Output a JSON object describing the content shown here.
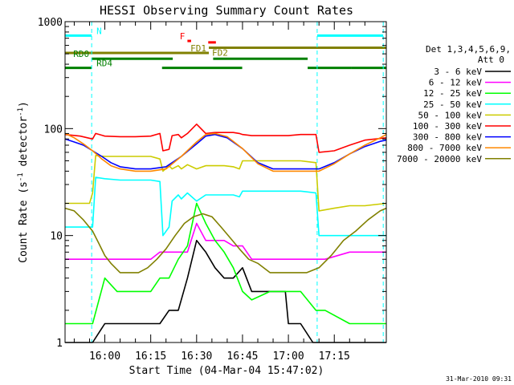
{
  "chart_data": {
    "type": "line",
    "title": "HESSI Observing Summary Count Rates",
    "xlabel": "Start Time (04-Mar-04 15:47:02)",
    "ylabel": "Count Rate (s",
    "ylabel_sup": "-1",
    "ylabel_mid": " detector",
    "ylabel_tail": ")",
    "y_scale": "log",
    "ylim": [
      1,
      1000
    ],
    "y_ticks": [
      {
        "value": 1,
        "label": "1"
      },
      {
        "value": 10,
        "label": "10"
      },
      {
        "value": 100,
        "label": "100"
      },
      {
        "value": 1000,
        "label": "1000"
      }
    ],
    "xlim_min": [
      947,
      1052
    ],
    "x_ticks": [
      {
        "value": 960,
        "label": "16:00"
      },
      {
        "value": 975,
        "label": "16:15"
      },
      {
        "value": 990,
        "label": "16:30"
      },
      {
        "value": 1005,
        "label": "16:45"
      },
      {
        "value": 1020,
        "label": "17:00"
      },
      {
        "value": 1035,
        "label": "17:15"
      }
    ],
    "legend_header": [
      "Det 1,3,4,5,6,9,",
      "Att 0"
    ],
    "legend_placement": "right",
    "timestamp": "31-Mar-2010 09:31",
    "series": [
      {
        "name": "3 - 6 keV",
        "color": "#000000",
        "x": [
          947,
          950,
          956,
          960,
          965,
          970,
          975,
          978,
          981,
          984,
          987,
          990,
          993,
          996,
          999,
          1002,
          1005,
          1008,
          1011,
          1014,
          1017,
          1019,
          1020,
          1022,
          1024,
          1028,
          1030,
          1035,
          1040,
          1045,
          1052
        ],
        "y": [
          1,
          1,
          1,
          1.5,
          1.5,
          1.5,
          1.5,
          1.5,
          2,
          2,
          4,
          9,
          7,
          5,
          4,
          4,
          5,
          3,
          3,
          3,
          3,
          3,
          1.5,
          1.5,
          1.5,
          1,
          1,
          1,
          1,
          1,
          1
        ]
      },
      {
        "name": "6 - 12 keV",
        "color": "#ff00ff",
        "x": [
          947,
          956,
          960,
          964,
          970,
          975,
          978,
          981,
          984,
          987,
          990,
          993,
          996,
          999,
          1002,
          1005,
          1008,
          1014,
          1020,
          1024,
          1029,
          1032,
          1040,
          1046,
          1052
        ],
        "y": [
          6,
          6,
          6,
          6,
          6,
          6,
          7,
          7,
          7,
          7,
          13,
          9,
          9,
          9,
          8,
          8,
          6,
          6,
          6,
          6,
          6,
          6,
          7,
          7,
          7
        ]
      },
      {
        "name": "12 - 25 keV",
        "color": "#00ff00",
        "x": [
          947,
          956,
          960,
          964,
          970,
          975,
          978,
          981,
          984,
          987,
          990,
          993,
          996,
          999,
          1002,
          1005,
          1008,
          1014,
          1020,
          1024,
          1029,
          1032,
          1040,
          1046,
          1052
        ],
        "y": [
          1.5,
          1.5,
          4,
          3,
          3,
          3,
          4,
          4,
          6,
          8,
          20,
          13,
          9,
          7,
          5,
          3,
          2.5,
          3,
          3,
          3,
          2,
          2,
          1.5,
          1.5,
          1.5
        ]
      },
      {
        "name": "25 - 50 keV",
        "color": "#00ffff",
        "x": [
          947,
          950,
          955,
          956,
          957,
          960,
          965,
          970,
          975,
          978,
          979,
          981,
          982,
          984,
          985,
          987,
          990,
          993,
          996,
          999,
          1002,
          1004,
          1005,
          1008,
          1014,
          1020,
          1024,
          1029,
          1030,
          1035,
          1040,
          1045,
          1052
        ],
        "y": [
          12,
          12,
          12,
          12,
          35,
          34,
          33,
          33,
          33,
          32,
          10,
          12,
          21,
          24,
          22,
          25,
          21,
          24,
          24,
          24,
          24,
          23,
          26,
          26,
          26,
          26,
          26,
          25,
          10,
          10,
          10,
          10,
          10
        ]
      },
      {
        "name": "50 - 100 keV",
        "color": "#cccc00",
        "x": [
          947,
          950,
          955,
          956,
          957,
          960,
          965,
          970,
          975,
          978,
          979,
          981,
          982,
          984,
          985,
          987,
          990,
          993,
          996,
          999,
          1002,
          1004,
          1005,
          1008,
          1014,
          1020,
          1024,
          1029,
          1030,
          1035,
          1040,
          1045,
          1052
        ],
        "y": [
          20,
          20,
          20,
          25,
          56,
          55,
          55,
          55,
          55,
          52,
          40,
          45,
          42,
          45,
          42,
          46,
          42,
          45,
          45,
          45,
          44,
          42,
          50,
          50,
          50,
          50,
          50,
          48,
          17,
          18,
          19,
          19,
          20
        ]
      },
      {
        "name": "100 - 300 keV",
        "color": "#ff0000",
        "x": [
          947,
          952,
          956,
          957,
          960,
          965,
          970,
          975,
          978,
          979,
          981,
          982,
          984,
          985,
          987,
          990,
          993,
          996,
          999,
          1002,
          1004,
          1005,
          1008,
          1014,
          1020,
          1024,
          1029,
          1030,
          1035,
          1040,
          1045,
          1052
        ],
        "y": [
          88,
          85,
          80,
          90,
          85,
          84,
          84,
          85,
          90,
          62,
          64,
          86,
          88,
          82,
          90,
          110,
          90,
          92,
          92,
          92,
          90,
          88,
          86,
          86,
          86,
          88,
          88,
          60,
          62,
          70,
          78,
          82
        ]
      },
      {
        "name": "300 - 800 keV",
        "color": "#0000ff",
        "x": [
          947,
          950,
          953,
          956,
          959,
          962,
          965,
          970,
          975,
          980,
          985,
          990,
          993,
          996,
          1000,
          1005,
          1010,
          1015,
          1020,
          1025,
          1030,
          1035,
          1040,
          1045,
          1050,
          1052
        ],
        "y": [
          80,
          75,
          70,
          62,
          55,
          48,
          44,
          42,
          42,
          44,
          55,
          72,
          85,
          88,
          82,
          65,
          48,
          42,
          42,
          42,
          42,
          48,
          58,
          68,
          76,
          78
        ]
      },
      {
        "name": "800 - 7000 keV",
        "color": "#ff8800",
        "x": [
          947,
          950,
          953,
          956,
          959,
          962,
          965,
          970,
          975,
          980,
          985,
          990,
          993,
          996,
          1000,
          1005,
          1010,
          1015,
          1020,
          1025,
          1030,
          1035,
          1040,
          1045,
          1050,
          1052
        ],
        "y": [
          90,
          82,
          72,
          62,
          52,
          45,
          42,
          40,
          40,
          42,
          55,
          75,
          88,
          90,
          84,
          65,
          47,
          40,
          40,
          40,
          40,
          47,
          58,
          70,
          82,
          88
        ]
      },
      {
        "name": "7000 - 20000 keV",
        "color": "#808000",
        "x": [
          947,
          950,
          953,
          956,
          958,
          960,
          962,
          965,
          968,
          971,
          974,
          977,
          980,
          983,
          986,
          989,
          992,
          995,
          998,
          1001,
          1004,
          1007,
          1010,
          1014,
          1020,
          1026,
          1030,
          1034,
          1038,
          1042,
          1046,
          1050,
          1052
        ],
        "y": [
          18,
          17,
          14,
          11,
          8.5,
          6.5,
          5.5,
          4.5,
          4.5,
          4.5,
          5,
          6,
          7.5,
          10,
          13,
          15,
          16,
          15,
          12,
          9.5,
          7.5,
          6,
          5.5,
          4.5,
          4.5,
          4.5,
          5,
          6.5,
          9,
          11,
          14,
          17,
          18
        ]
      }
    ],
    "vlines_cyan": [
      955.7,
      1029.4,
      1051.0
    ],
    "flags": [
      {
        "label": "N",
        "color": "#00ffff",
        "x_start": 947,
        "x_end": 955.7,
        "x_start2": 1029.4,
        "x_end2": 1051,
        "y": 740
      },
      {
        "label": "F",
        "color": "#ff0000",
        "x_start": 987,
        "x_end": 988.2,
        "y": 660
      },
      {
        "label": "",
        "color": "#ff0000",
        "x_start": 993.8,
        "x_end": 996.3,
        "y": 640
      },
      {
        "label": "FD1",
        "color": "#808000",
        "x_start": 947,
        "x_end": 994,
        "y": 510
      },
      {
        "label": "FD2",
        "color": "#808000",
        "x_start": 994,
        "x_end": 1052,
        "y": 570
      },
      {
        "label": "RD0",
        "color": "#008000",
        "x_start": 955.7,
        "x_end": 982.2,
        "y": 450
      },
      {
        "label": "",
        "color": "#008000",
        "x_start": 995.4,
        "x_end": 1026.3,
        "y": 450
      },
      {
        "label": "RD4",
        "color": "#008000",
        "x_start": 947,
        "x_end": 955.7,
        "y": 370
      },
      {
        "label": "",
        "color": "#008000",
        "x_start": 978.7,
        "x_end": 1004.9,
        "y": 370
      },
      {
        "label": "",
        "color": "#008000",
        "x_start": 1026.3,
        "x_end": 1040.7,
        "y": 370
      },
      {
        "label": "",
        "color": "#008000",
        "x_start": 1040.7,
        "x_end": 1052,
        "y": 370
      }
    ]
  }
}
